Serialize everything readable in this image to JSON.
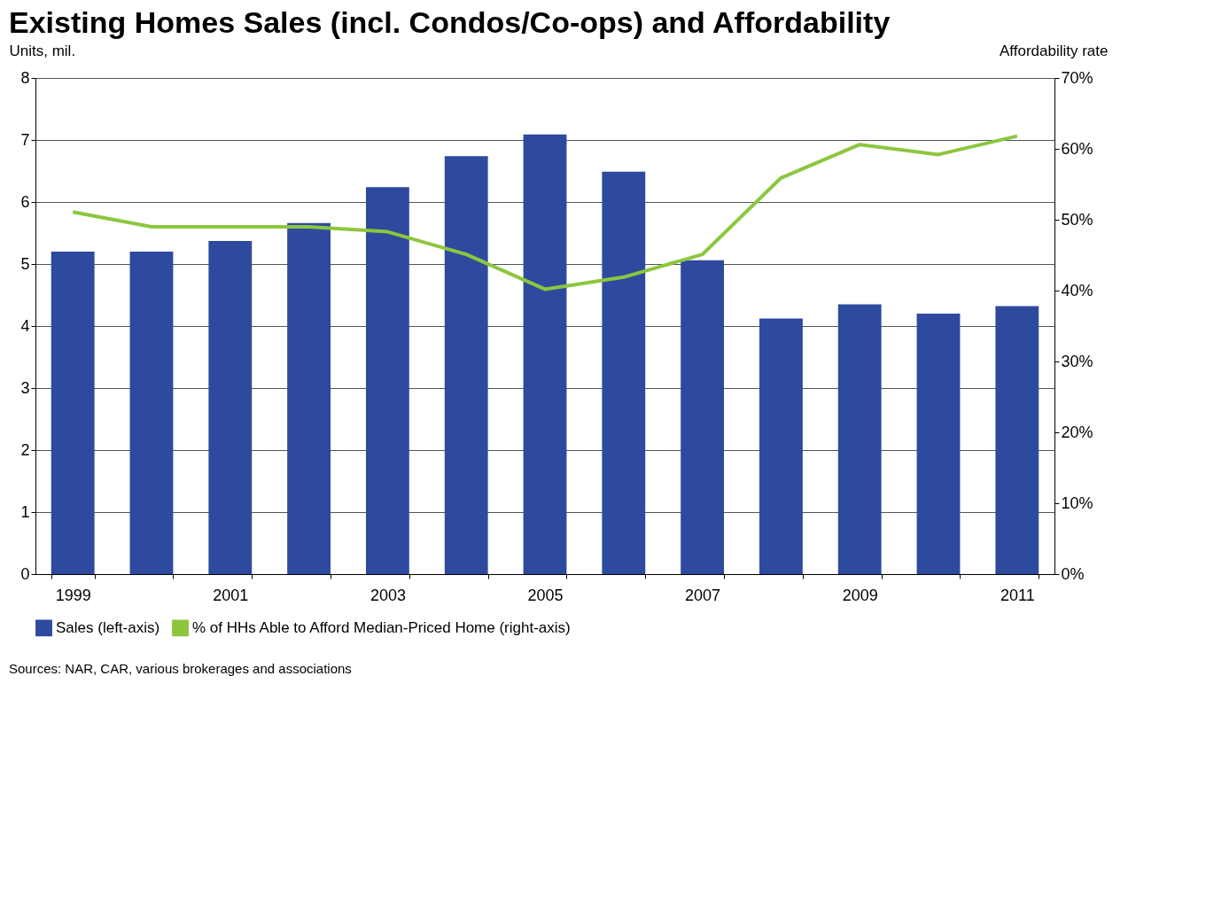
{
  "chart_data": {
    "type": "bar",
    "title": "Existing Homes Sales (incl. Condos/Co-ops) and Affordability",
    "categories": [
      "1999",
      null,
      "2001",
      null,
      "2003",
      null,
      "2005",
      null,
      "2007",
      null,
      "2009",
      null,
      "2011"
    ],
    "series": [
      {
        "name": "Sales (left-axis)",
        "color": "#2e4a9e",
        "values": [
          5.2,
          5.2,
          5.37,
          5.66,
          6.24,
          6.74,
          7.09,
          6.49,
          5.06,
          4.12,
          4.35,
          4.2,
          4.32
        ]
      },
      {
        "name": "% of HHs Able to Afford Median-Priced Home (right-axis)",
        "type": "line",
        "axis": "y2",
        "color": "#8cc63f",
        "values": [
          51.1,
          49,
          49,
          49,
          48.3,
          45.1,
          40.2,
          41.9,
          45.1,
          55.9,
          60.6,
          59.2,
          61.8
        ]
      }
    ],
    "ylabel": "Units, mil.",
    "y2label": "Affordability rate",
    "ylim": [
      0,
      8
    ],
    "yticks": [
      0,
      1,
      2,
      3,
      4,
      5,
      6,
      7,
      8
    ],
    "y2lim": [
      0,
      70
    ],
    "y2ticks": [
      {
        "value": 0,
        "label": "0%"
      },
      {
        "value": 10,
        "label": "10%"
      },
      {
        "value": 20,
        "label": "20%"
      },
      {
        "value": 30,
        "label": "30%"
      },
      {
        "value": 40,
        "label": "40%"
      },
      {
        "value": 50,
        "label": "50%"
      },
      {
        "value": 60,
        "label": "60%"
      },
      {
        "value": 70,
        "label": "70%"
      }
    ],
    "grid": "y",
    "legend": "bottom",
    "annotations": [
      "Sources: NAR, CAR, various brokerages and associations"
    ]
  }
}
